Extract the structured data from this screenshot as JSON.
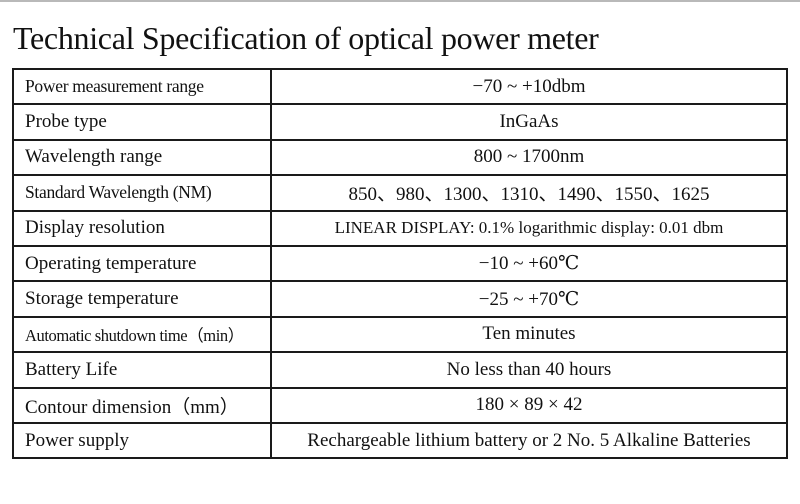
{
  "title": "Technical Specification of optical power meter",
  "table": {
    "rows": [
      {
        "parameter": "Power measurement range",
        "value": "−70 ~ +10dbm"
      },
      {
        "parameter": "Probe type",
        "value": "InGaAs"
      },
      {
        "parameter": "Wavelength range",
        "value": "800 ~ 1700nm"
      },
      {
        "parameter": "Standard Wavelength (NM)",
        "value": "850、980、1300、1310、1490、1550、1625"
      },
      {
        "parameter": "Display resolution",
        "value": "LINEAR DISPLAY: 0.1% logarithmic display: 0.01 dbm"
      },
      {
        "parameter": "Operating temperature",
        "value": "−10 ~ +60℃"
      },
      {
        "parameter": "Storage temperature",
        "value": "−25 ~ +70℃"
      },
      {
        "parameter": "Automatic shutdown time（min）",
        "value": "Ten minutes"
      },
      {
        "parameter": "Battery Life",
        "value": "No less than 40 hours"
      },
      {
        "parameter": "Contour dimension（mm）",
        "value": "180 × 89 × 42"
      },
      {
        "parameter": "Power supply",
        "value": "Rechargeable lithium battery or 2 No. 5 Alkaline Batteries"
      }
    ]
  },
  "colors": {
    "background": "#ffffff",
    "text": "#111111",
    "border": "#1a1a1a",
    "top_edge": "#b9b9b9"
  }
}
